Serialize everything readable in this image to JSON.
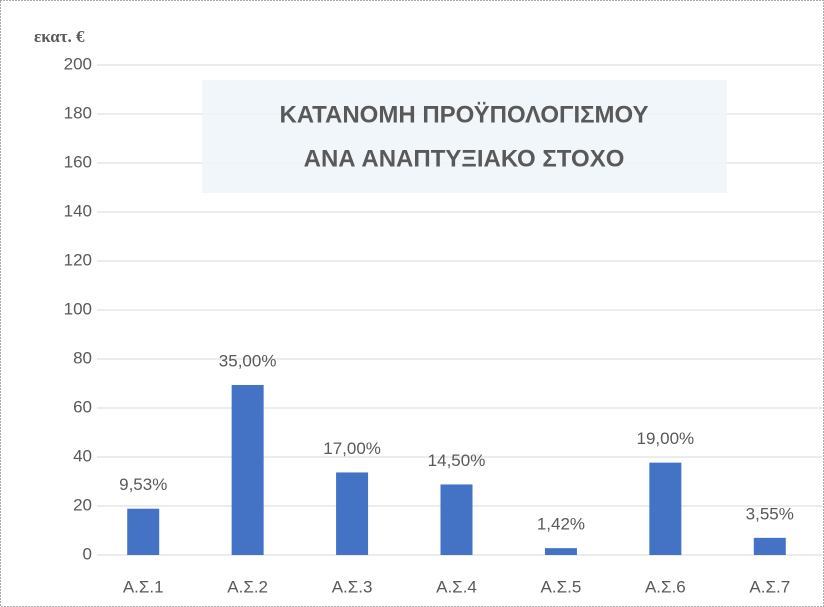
{
  "chart_data": {
    "type": "bar",
    "title": [
      "ΚΑΤΑΝΟΜΗ ΠΡΟΫΠΟΛΟΓΙΣΜΟΥ",
      "ΑΝΑ ΑΝΑΠΤΥΞΙΑΚΟ ΣΤΟΧΟ"
    ],
    "y_label": "εκατ. €",
    "categories": [
      "Α.Σ.1",
      "Α.Σ.2",
      "Α.Σ.3",
      "Α.Σ.4",
      "Α.Σ.5",
      "Α.Σ.6",
      "Α.Σ.7"
    ],
    "values": [
      18.9,
      69.4,
      33.7,
      28.8,
      2.8,
      37.7,
      7.0
    ],
    "value_labels": [
      "9,53%",
      "35,00%",
      "17,00%",
      "14,50%",
      "1,42%",
      "19,00%",
      "3,55%"
    ],
    "color": "#4472c4",
    "ylim": [
      0,
      200
    ],
    "yticks": [
      0,
      20,
      40,
      60,
      80,
      100,
      120,
      140,
      160,
      180,
      200
    ],
    "grid": true
  }
}
